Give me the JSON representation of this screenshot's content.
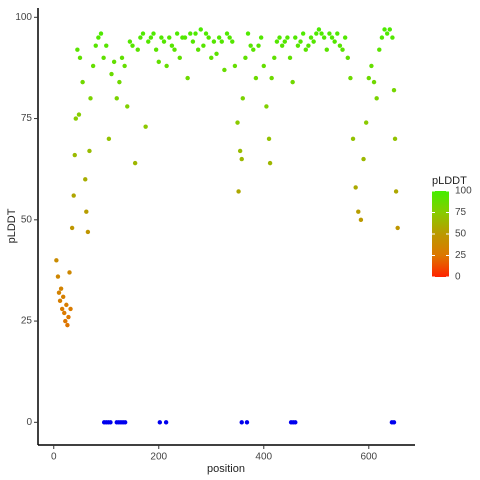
{
  "chart_data": {
    "type": "scatter",
    "x_label": "position",
    "y_label": "pLDDT",
    "xlim": [
      -30,
      688
    ],
    "ylim": [
      -5.6,
      102.3
    ],
    "xticks": [
      0,
      200,
      400,
      600
    ],
    "yticks": [
      0,
      25,
      50,
      75,
      100
    ],
    "grid": false,
    "legend": {
      "title": "pLDDT",
      "ticks": [
        0,
        25,
        50,
        75,
        100
      ],
      "colors": [
        "#ff2200",
        "#dd7700",
        "#bb9900",
        "#88cc00",
        "#44ee00"
      ]
    },
    "series": [
      {
        "x": [
          5,
          8,
          10,
          12,
          14,
          16,
          18,
          20,
          22,
          24,
          26,
          28,
          30,
          32,
          35,
          38,
          40,
          42,
          45,
          48,
          50,
          55,
          60,
          62,
          65,
          68,
          70,
          75,
          80,
          85,
          90,
          95,
          100,
          105,
          110,
          115,
          120,
          125,
          130,
          135,
          140,
          145,
          150,
          155,
          160,
          165,
          170,
          175,
          180,
          185,
          190,
          195,
          200,
          205,
          210,
          215,
          220,
          225,
          230,
          235,
          240,
          245,
          250,
          255,
          260,
          265,
          270,
          275,
          280,
          285,
          290,
          295,
          300,
          305,
          310,
          315,
          320,
          325,
          330,
          335,
          340,
          345,
          350,
          352,
          355,
          358,
          360,
          365,
          370,
          375,
          380,
          385,
          390,
          395,
          400,
          405,
          410,
          412,
          415,
          420,
          425,
          430,
          435,
          440,
          445,
          450,
          455,
          460,
          465,
          470,
          475,
          480,
          485,
          490,
          495,
          500,
          505,
          510,
          515,
          520,
          525,
          530,
          535,
          540,
          545,
          550,
          555,
          560,
          565,
          570,
          575,
          580,
          585,
          590,
          595,
          600,
          605,
          610,
          615,
          620,
          625,
          630,
          635,
          640,
          645,
          648,
          650,
          652,
          655
        ],
        "values": [
          40,
          36,
          32,
          30,
          33,
          28,
          31,
          27,
          25,
          29,
          24,
          26,
          37,
          28,
          48,
          56,
          66,
          75,
          92,
          76,
          90,
          84,
          60,
          52,
          47,
          67,
          80,
          88,
          93,
          95,
          96,
          90,
          93,
          70,
          86,
          89,
          80,
          84,
          90,
          88,
          78,
          94,
          93,
          64,
          92,
          95,
          96,
          73,
          94,
          95,
          96,
          92,
          89,
          95,
          94,
          88,
          95,
          93,
          92,
          96,
          90,
          95,
          95,
          85,
          96,
          94,
          96,
          92,
          97,
          93,
          96,
          95,
          90,
          94,
          91,
          95,
          94,
          87,
          96,
          95,
          94,
          88,
          74,
          57,
          67,
          65,
          80,
          90,
          96,
          93,
          92,
          85,
          93,
          95,
          88,
          78,
          70,
          64,
          85,
          90,
          94,
          95,
          93,
          94,
          95,
          90,
          84,
          95,
          93,
          94,
          96,
          92,
          93,
          95,
          94,
          96,
          97,
          96,
          95,
          92,
          96,
          95,
          94,
          96,
          93,
          92,
          95,
          90,
          85,
          70,
          58,
          52,
          50,
          65,
          74,
          85,
          88,
          84,
          80,
          92,
          95,
          97,
          96,
          97,
          95,
          82,
          70,
          57,
          48
        ]
      },
      {
        "x": [
          96,
          100,
          104,
          108,
          120,
          124,
          128,
          132,
          136,
          202,
          214,
          358,
          368,
          452,
          456,
          460,
          644,
          648
        ],
        "values": [
          0,
          0,
          0,
          0,
          0,
          0,
          0,
          0,
          0,
          0,
          0,
          0,
          0,
          0,
          0,
          0,
          0,
          0
        ],
        "color": "#0000ee"
      }
    ]
  }
}
